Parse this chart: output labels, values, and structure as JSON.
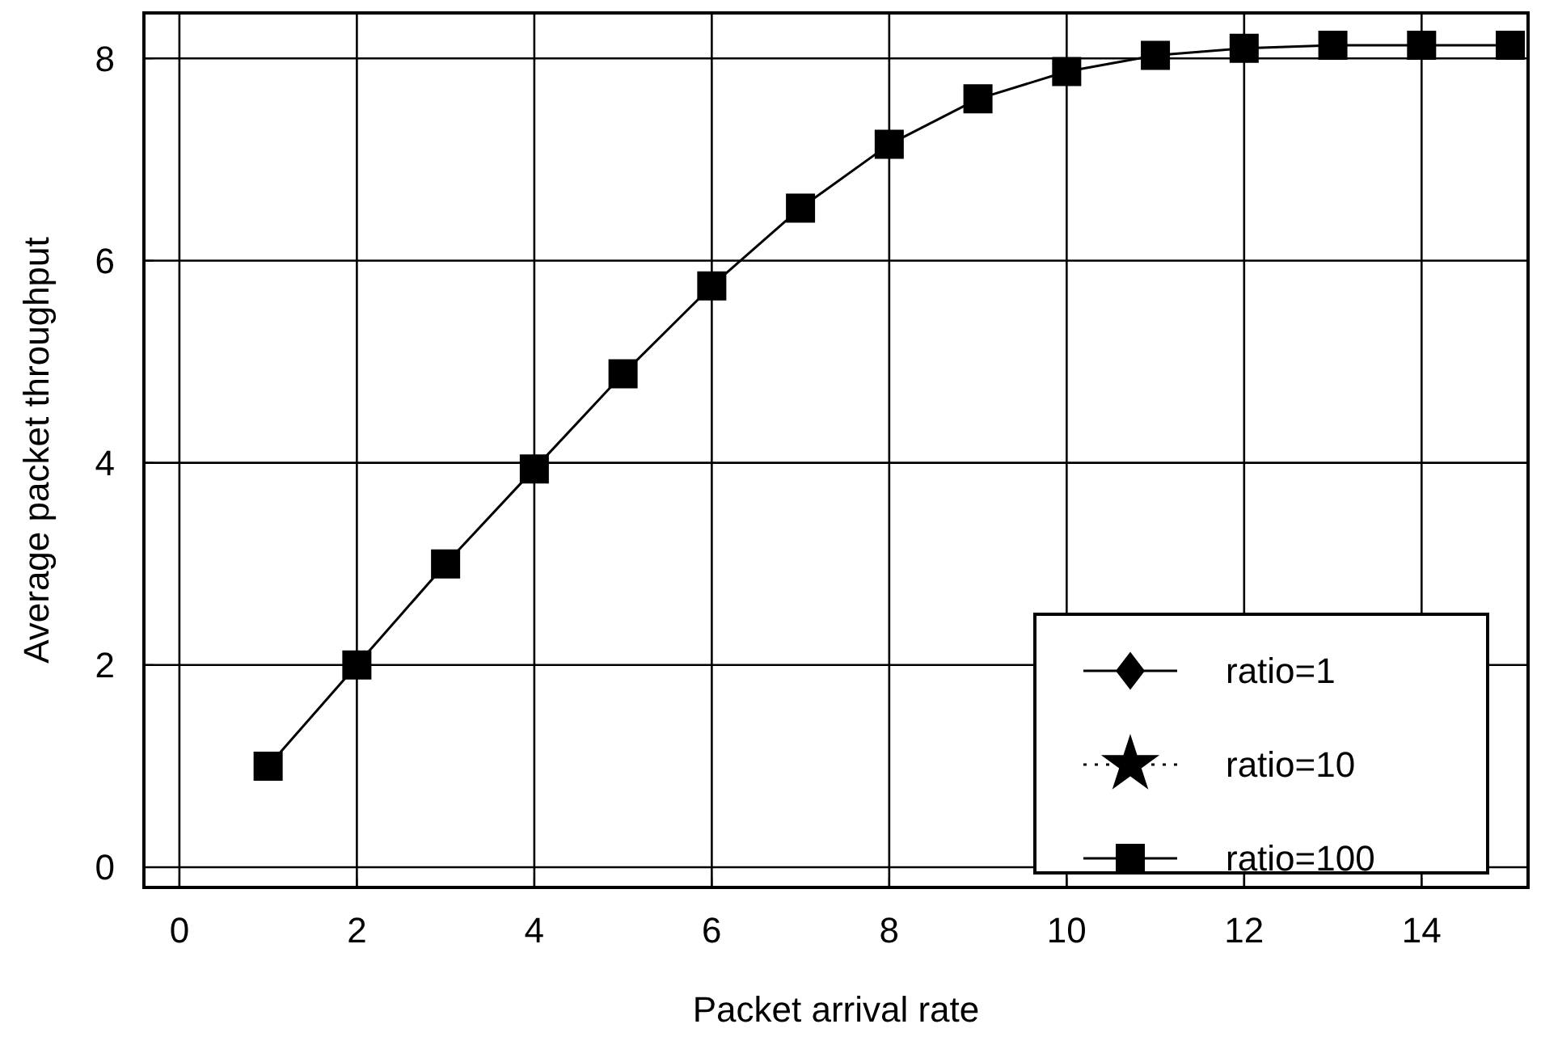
{
  "chart_data": {
    "type": "line",
    "xlabel": "Packet arrival rate",
    "ylabel": "Average packet throughput",
    "x": [
      1,
      2,
      3,
      4,
      5,
      6,
      7,
      8,
      9,
      10,
      11,
      12,
      13,
      14,
      15
    ],
    "series": [
      {
        "name": "ratio=1",
        "color": "#000000",
        "marker": "diamond",
        "line_style": "solid",
        "values": [
          null,
          null,
          null,
          null,
          null,
          null,
          null,
          null,
          null,
          null,
          null,
          null,
          null,
          null,
          null
        ]
      },
      {
        "name": "ratio=10",
        "color": "#000000",
        "marker": "star",
        "line_style": "dotted",
        "values": [
          null,
          null,
          null,
          null,
          null,
          null,
          null,
          null,
          null,
          null,
          null,
          null,
          null,
          null,
          null
        ]
      },
      {
        "name": "ratio=100",
        "color": "#000000",
        "marker": "square",
        "line_style": "solid",
        "values": [
          1,
          2,
          3,
          3.94,
          4.88,
          5.75,
          6.52,
          7.15,
          7.6,
          7.87,
          8.03,
          8.1,
          8.13,
          8.13,
          8.13
        ]
      }
    ],
    "xlim": [
      -0.4,
      15.2
    ],
    "ylim": [
      -0.2,
      8.45
    ],
    "xticks": [
      0,
      2,
      4,
      6,
      8,
      10,
      12,
      14
    ],
    "yticks": [
      0,
      2,
      4,
      6,
      8
    ],
    "grid": true,
    "legend": "bottom right"
  }
}
